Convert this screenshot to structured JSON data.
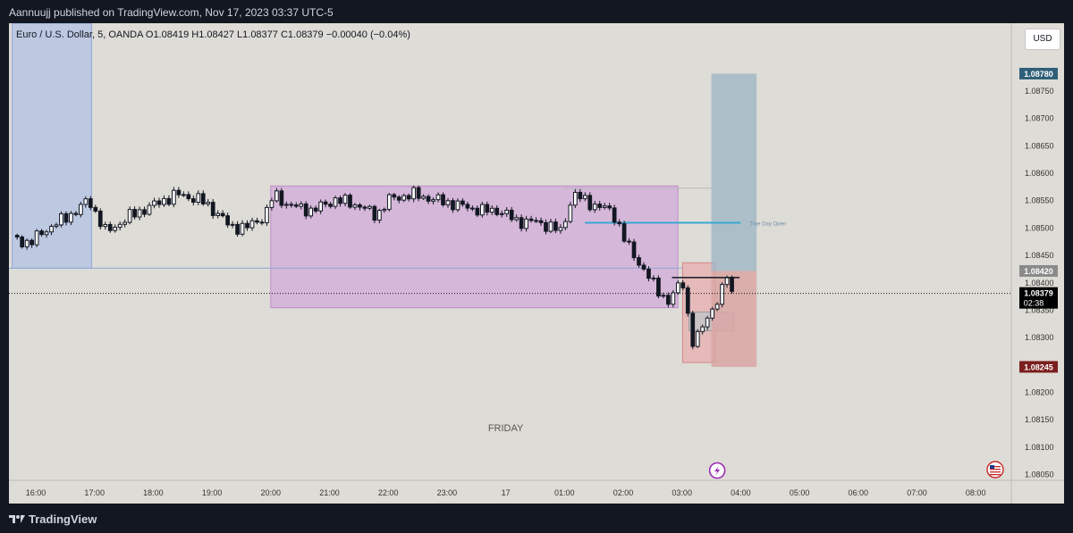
{
  "header": {
    "published_line": "Aannuujj published on TradingView.com, Nov 17, 2023 03:37 UTC-5"
  },
  "chart_header": {
    "symbol_line": "Euro / U.S. Dollar, 5, OANDA  O1.08419  H1.08427  L1.08377  C1.08379  −0.00040 (−0.04%)"
  },
  "currency_button": {
    "label": "USD"
  },
  "footer": {
    "brand": "TradingView",
    "logo_icon": "tradingview-logo-icon"
  },
  "chart_data": {
    "type": "candlestick",
    "symbol": "EURUSD",
    "timeframe": "5",
    "broker": "OANDA",
    "ohlc": {
      "open": 1.08419,
      "high": 1.08427,
      "low": 1.08377,
      "close": 1.08379,
      "change": -0.0004,
      "change_pct": -0.04
    },
    "time_start": 15.6,
    "time_end": 24.54,
    "y_range": [
      1.08038,
      1.08872
    ],
    "y_ticks": [
      {
        "v": 1.0885,
        "t": "1.08850"
      },
      {
        "v": 1.0875,
        "t": "1.08750"
      },
      {
        "v": 1.087,
        "t": "1.08700"
      },
      {
        "v": 1.0865,
        "t": "1.08650"
      },
      {
        "v": 1.086,
        "t": "1.08600"
      },
      {
        "v": 1.0855,
        "t": "1.08550"
      },
      {
        "v": 1.085,
        "t": "1.08500"
      },
      {
        "v": 1.0845,
        "t": "1.08450"
      },
      {
        "v": 1.084,
        "t": "1.08400"
      },
      {
        "v": 1.0835,
        "t": "1.08350"
      },
      {
        "v": 1.083,
        "t": "1.08300"
      },
      {
        "v": 1.0825,
        "t": "1.08250"
      },
      {
        "v": 1.082,
        "t": "1.08200"
      },
      {
        "v": 1.0815,
        "t": "1.08150"
      },
      {
        "v": 1.081,
        "t": "1.08100"
      },
      {
        "v": 1.0805,
        "t": "1.08050"
      }
    ],
    "x_ticks": [
      {
        "h": 16,
        "t": "16:00"
      },
      {
        "h": 17,
        "t": "17:00"
      },
      {
        "h": 18,
        "t": "18:00"
      },
      {
        "h": 19,
        "t": "19:00"
      },
      {
        "h": 20,
        "t": "20:00"
      },
      {
        "h": 21,
        "t": "21:00"
      },
      {
        "h": 22,
        "t": "22:00"
      },
      {
        "h": 23,
        "t": "23:00"
      },
      {
        "h": 24,
        "t": "17"
      },
      {
        "h": 25,
        "t": "01:00"
      },
      {
        "h": 26,
        "t": "02:00"
      },
      {
        "h": 27,
        "t": "03:00"
      },
      {
        "h": 28,
        "t": "04:00"
      },
      {
        "h": 29,
        "t": "05:00"
      },
      {
        "h": 30,
        "t": "06:00"
      },
      {
        "h": 31,
        "t": "07:00"
      },
      {
        "h": 32,
        "t": "08:00"
      }
    ],
    "anchors": [
      [
        15.6,
        1.0848
      ],
      [
        15.9,
        1.0847
      ],
      [
        16.1,
        1.0849
      ],
      [
        16.4,
        1.0851
      ],
      [
        16.7,
        1.0853
      ],
      [
        16.9,
        1.0855
      ],
      [
        17.05,
        1.0852
      ],
      [
        17.2,
        1.0849
      ],
      [
        17.6,
        1.0852
      ],
      [
        18.0,
        1.0854
      ],
      [
        18.4,
        1.0856
      ],
      [
        18.8,
        1.0855
      ],
      [
        19.15,
        1.0852
      ],
      [
        19.3,
        1.085
      ],
      [
        19.6,
        1.085
      ],
      [
        19.9,
        1.0852
      ],
      [
        20.05,
        1.0856
      ],
      [
        20.3,
        1.0854
      ],
      [
        20.7,
        1.0853
      ],
      [
        21.1,
        1.0855
      ],
      [
        21.5,
        1.0854
      ],
      [
        21.8,
        1.0852
      ],
      [
        22.0,
        1.0855
      ],
      [
        22.4,
        1.0856
      ],
      [
        22.8,
        1.0855
      ],
      [
        23.2,
        1.0854
      ],
      [
        23.6,
        1.0853
      ],
      [
        23.9,
        1.0853
      ],
      [
        24.2,
        1.0851
      ],
      [
        24.5,
        1.0851
      ],
      [
        24.8,
        1.085
      ],
      [
        24.95,
        1.0849
      ],
      [
        25.05,
        1.0853
      ],
      [
        25.15,
        1.0856
      ],
      [
        25.5,
        1.0854
      ],
      [
        25.8,
        1.0853
      ],
      [
        25.9,
        1.0851
      ],
      [
        26.05,
        1.0847
      ],
      [
        26.3,
        1.0843
      ],
      [
        26.55,
        1.0839
      ],
      [
        26.8,
        1.0836
      ],
      [
        26.9,
        1.0839
      ],
      [
        27.05,
        1.084
      ],
      [
        27.1,
        1.0834
      ],
      [
        27.2,
        1.0828
      ],
      [
        27.35,
        1.0832
      ],
      [
        27.5,
        1.0835
      ],
      [
        27.65,
        1.0837
      ],
      [
        27.78,
        1.0842
      ],
      [
        27.85,
        1.0838
      ]
    ],
    "zones": [
      {
        "t0": 15.6,
        "t1": 16.95,
        "y0": 1.08872,
        "y1": 1.08425,
        "fill": "#b7c6e3",
        "stroke": "#8fa7d6"
      },
      {
        "t0": 20.0,
        "t1": 26.93,
        "y0": 1.08575,
        "y1": 1.08353,
        "fill": "#d4b0d9",
        "stroke": "#c08ac8"
      },
      {
        "t0": 27.01,
        "t1": 27.57,
        "y0": 1.08435,
        "y1": 1.08253,
        "fill": "#e6b4b4",
        "stroke": "#d18686"
      },
      {
        "t0": 27.12,
        "t1": 27.88,
        "y0": 1.08345,
        "y1": 1.08311,
        "fill": "#c4c4c8",
        "stroke": "#9a9aa0"
      }
    ],
    "true_day_open": {
      "t0": 25.35,
      "t1": 28.0,
      "price": 1.08508,
      "label": "True Day Open"
    },
    "position": {
      "t0": 27.5,
      "t1": 28.27,
      "entry": 1.0842,
      "target": 1.0878,
      "stop": 1.08245
    },
    "ray": {
      "t0": 25.0,
      "t1": 27.52,
      "price": 1.08571
    },
    "black_line": {
      "t0": 26.83,
      "t1": 27.98,
      "price": 1.08408
    },
    "current_price": 1.08379,
    "annotation": "FRIDAY",
    "price_labels": {
      "target": "1.08780",
      "entry": "1.08420",
      "current": "1.08379",
      "countdown": "02:38",
      "stop": "1.08245"
    },
    "colors": {
      "target": "#2f5f78",
      "entry": "#8a8a8a",
      "current": "#000000",
      "stop": "#7b1e1e",
      "true_day_open": "#3aa7d4",
      "candle_up": "#ffffff",
      "candle_down": "#131722"
    },
    "icons": {
      "lightning": "lightning-bolt-icon",
      "flag": "us-flag-icon"
    }
  }
}
